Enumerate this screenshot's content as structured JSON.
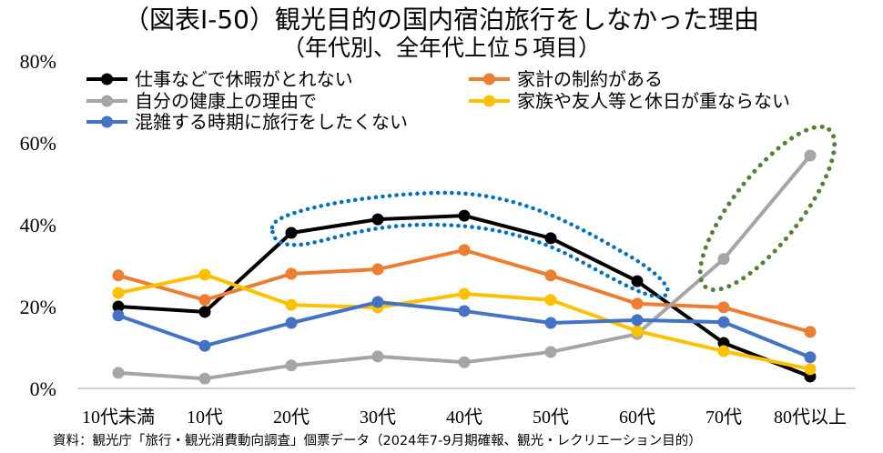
{
  "chart_data": {
    "type": "line",
    "title": "（図表Ⅰ-50）観光目的の国内宿泊旅行をしなかった理由",
    "subtitle": "（年代別、全年代上位５項目）",
    "xlabel": "",
    "ylabel": "",
    "categories": [
      "10代未満",
      "10代",
      "20代",
      "30代",
      "40代",
      "50代",
      "60代",
      "70代",
      "80代以上"
    ],
    "y_ticks": [
      "0%",
      "20%",
      "40%",
      "60%",
      "80%"
    ],
    "ylim": [
      0,
      80
    ],
    "grid": false,
    "legend": "top-left",
    "series": [
      {
        "name": "仕事などで休暇がとれない",
        "color": "#000000",
        "values": [
          20.0,
          18.7,
          38.0,
          41.3,
          42.2,
          36.7,
          26.2,
          11.1,
          2.9
        ]
      },
      {
        "name": "家計の制約がある",
        "color": "#ED7D31",
        "values": [
          27.6,
          21.6,
          28.0,
          29.1,
          33.8,
          27.6,
          20.7,
          19.8,
          13.8
        ]
      },
      {
        "name": "自分の健康上の理由で",
        "color": "#A5A5A5",
        "values": [
          3.8,
          2.4,
          5.6,
          7.8,
          6.4,
          8.9,
          13.3,
          31.6,
          56.9
        ]
      },
      {
        "name": "家族や友人等と休日が重ならない",
        "color": "#FFC000",
        "values": [
          23.3,
          27.8,
          20.4,
          19.8,
          23.1,
          21.6,
          14.0,
          9.1,
          4.7
        ]
      },
      {
        "name": "混雑する時期に旅行をしたくない",
        "color": "#4472C4",
        "values": [
          17.8,
          10.4,
          16.0,
          21.1,
          18.9,
          16.0,
          16.7,
          16.2,
          7.6
        ]
      }
    ]
  },
  "source": "資料：観光庁「旅行・観光消費動向調査」個票データ（2024年7-9月期確報、観光・レクリエーション目的）",
  "highlight_colors": [
    "#0070C0",
    "#548235"
  ]
}
